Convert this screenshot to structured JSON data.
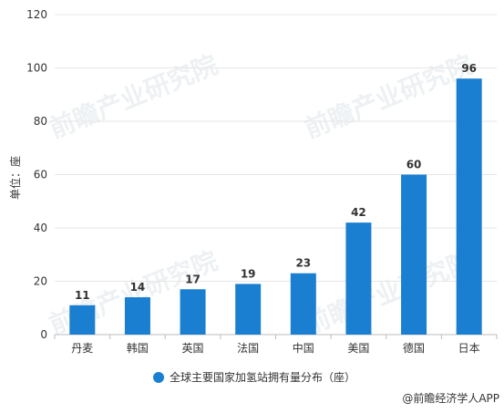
{
  "chart_data": {
    "type": "bar",
    "categories": [
      "丹麦",
      "韩国",
      "英国",
      "法国",
      "中国",
      "美国",
      "德国",
      "日本"
    ],
    "series": [
      {
        "name": "全球主要国家加氢站拥有量分布（座）",
        "values": [
          11,
          14,
          17,
          19,
          23,
          42,
          60,
          96
        ],
        "color": "#1a7fd0"
      }
    ],
    "ylabel": "单位：座",
    "ylim": [
      0,
      120
    ],
    "yticks": [
      0,
      20,
      40,
      60,
      80,
      100,
      120
    ],
    "grid": true,
    "legend_position": "bottom-center",
    "data_labels": true
  },
  "source": "@前瞻经济学人APP",
  "watermark": "前瞻产业研究院"
}
